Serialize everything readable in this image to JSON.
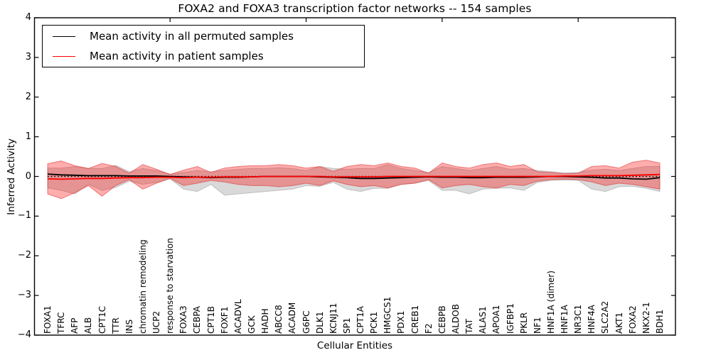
{
  "chart_data": {
    "type": "line",
    "title": "FOXA2 and FOXA3 transcription factor networks -- 154 samples",
    "xlabel": "Cellular Entities",
    "ylabel": "Inferred Activity",
    "ylim": [
      -4,
      4
    ],
    "ytick_values": [
      4,
      3,
      2,
      1,
      0,
      -1,
      -2,
      -3,
      -4
    ],
    "ytick_labels": [
      "4",
      "3",
      "2",
      "1",
      "0",
      "−1",
      "−2",
      "−3",
      "−4"
    ],
    "top_tick_indices": [
      9,
      19,
      29,
      39
    ],
    "grid": false,
    "legend_position": "upper left",
    "legend": [
      {
        "label": "Mean activity in all permuted samples",
        "color": "#000000"
      },
      {
        "label": "Mean activity in patient samples",
        "color": "#ff0000"
      }
    ],
    "categories": [
      "FOXA1",
      "TFRC",
      "AFP",
      "ALB",
      "CPT1C",
      "TTR",
      "INS",
      "chromatin remodeling",
      "UCP2",
      "response to starvation",
      "FOXA3",
      "CEBPA",
      "CPT1B",
      "FOXF1",
      "ACADVL",
      "GCK",
      "HADH",
      "ABCC8",
      "ACADM",
      "G6PC",
      "DLK1",
      "KCNJ11",
      "SP1",
      "CPT1A",
      "PCK1",
      "HMGCS1",
      "PDX1",
      "CREB1",
      "F2",
      "CEBPB",
      "ALDOB",
      "TAT",
      "ALAS1",
      "APOA1",
      "IGFBP1",
      "PKLR",
      "NF1",
      "HNF1A (dimer)",
      "HNF1A",
      "NR3C1",
      "HNF4A",
      "SLC2A2",
      "AKT1",
      "FOXA2",
      "NKX2-1",
      "BDH1"
    ],
    "series": [
      {
        "name": "Mean activity in all permuted samples",
        "color": "#000000",
        "values": [
          0.06,
          0.04,
          0.03,
          0.02,
          0.02,
          0.02,
          0.01,
          0.01,
          0.01,
          0.0,
          -0.01,
          -0.02,
          -0.03,
          -0.02,
          -0.02,
          -0.01,
          0.0,
          0.0,
          0.0,
          0.0,
          -0.01,
          -0.02,
          -0.03,
          -0.05,
          -0.05,
          -0.04,
          -0.03,
          -0.02,
          -0.01,
          -0.02,
          -0.02,
          -0.03,
          -0.03,
          -0.02,
          -0.02,
          -0.02,
          -0.01,
          0.0,
          0.0,
          -0.01,
          -0.02,
          -0.04,
          -0.04,
          -0.06,
          -0.07,
          -0.03
        ]
      },
      {
        "name": "Mean activity in patient samples",
        "color": "#ff0000",
        "values": [
          -0.06,
          -0.07,
          -0.06,
          -0.05,
          -0.05,
          -0.04,
          -0.03,
          -0.03,
          -0.02,
          -0.02,
          -0.03,
          -0.02,
          -0.02,
          -0.01,
          -0.01,
          -0.01,
          0.0,
          0.0,
          0.0,
          0.0,
          0.0,
          -0.01,
          -0.01,
          -0.01,
          -0.01,
          0.0,
          0.0,
          0.0,
          0.0,
          0.0,
          0.0,
          0.0,
          0.0,
          0.0,
          0.0,
          0.0,
          0.0,
          0.0,
          0.01,
          0.01,
          0.02,
          0.02,
          0.02,
          0.03,
          0.04,
          0.05
        ]
      }
    ],
    "bands": [
      {
        "name": "permuted-samples-std-band",
        "fill": "rgba(128,128,128,0.30)",
        "edge": "rgba(130,130,130,0.40)",
        "upper": [
          0.21,
          0.21,
          0.25,
          0.2,
          0.2,
          0.28,
          0.12,
          0.2,
          0.15,
          0.06,
          0.1,
          0.15,
          0.12,
          0.15,
          0.18,
          0.2,
          0.2,
          0.22,
          0.2,
          0.15,
          0.25,
          0.2,
          0.18,
          0.2,
          0.2,
          0.3,
          0.2,
          0.15,
          0.1,
          0.25,
          0.2,
          0.15,
          0.2,
          0.25,
          0.18,
          0.2,
          0.15,
          0.12,
          0.09,
          0.1,
          0.16,
          0.18,
          0.15,
          0.2,
          0.25,
          0.25
        ],
        "lower": [
          -0.29,
          -0.35,
          -0.44,
          -0.2,
          -0.35,
          -0.28,
          -0.12,
          -0.2,
          -0.15,
          -0.06,
          -0.32,
          -0.38,
          -0.2,
          -0.47,
          -0.44,
          -0.41,
          -0.38,
          -0.35,
          -0.32,
          -0.23,
          -0.25,
          -0.15,
          -0.32,
          -0.38,
          -0.3,
          -0.3,
          -0.2,
          -0.17,
          -0.1,
          -0.35,
          -0.35,
          -0.44,
          -0.32,
          -0.3,
          -0.29,
          -0.35,
          -0.15,
          -0.1,
          -0.09,
          -0.1,
          -0.32,
          -0.38,
          -0.26,
          -0.25,
          -0.3,
          -0.38
        ]
      },
      {
        "name": "patient-samples-std-band",
        "fill": "rgba(255,0,0,0.32)",
        "edge": "rgba(220,40,40,0.55)",
        "upper": [
          0.32,
          0.39,
          0.27,
          0.2,
          0.33,
          0.25,
          0.08,
          0.3,
          0.18,
          0.05,
          0.16,
          0.25,
          0.1,
          0.21,
          0.25,
          0.27,
          0.27,
          0.3,
          0.27,
          0.21,
          0.25,
          0.13,
          0.25,
          0.3,
          0.27,
          0.34,
          0.25,
          0.21,
          0.08,
          0.34,
          0.25,
          0.21,
          0.3,
          0.34,
          0.25,
          0.3,
          0.12,
          0.1,
          0.07,
          0.08,
          0.25,
          0.27,
          0.21,
          0.36,
          0.41,
          0.34
        ],
        "lower": [
          -0.44,
          -0.56,
          -0.41,
          -0.23,
          -0.5,
          -0.23,
          -0.08,
          -0.32,
          -0.17,
          -0.05,
          -0.23,
          -0.17,
          -0.1,
          -0.14,
          -0.2,
          -0.23,
          -0.23,
          -0.26,
          -0.23,
          -0.17,
          -0.23,
          -0.11,
          -0.2,
          -0.26,
          -0.23,
          -0.29,
          -0.2,
          -0.17,
          -0.08,
          -0.29,
          -0.23,
          -0.2,
          -0.26,
          -0.29,
          -0.2,
          -0.23,
          -0.12,
          -0.08,
          -0.07,
          -0.08,
          -0.14,
          -0.23,
          -0.17,
          -0.2,
          -0.26,
          -0.32
        ]
      }
    ],
    "zero_line": {
      "value": 0,
      "style": "dotted",
      "color": "#000000"
    }
  }
}
